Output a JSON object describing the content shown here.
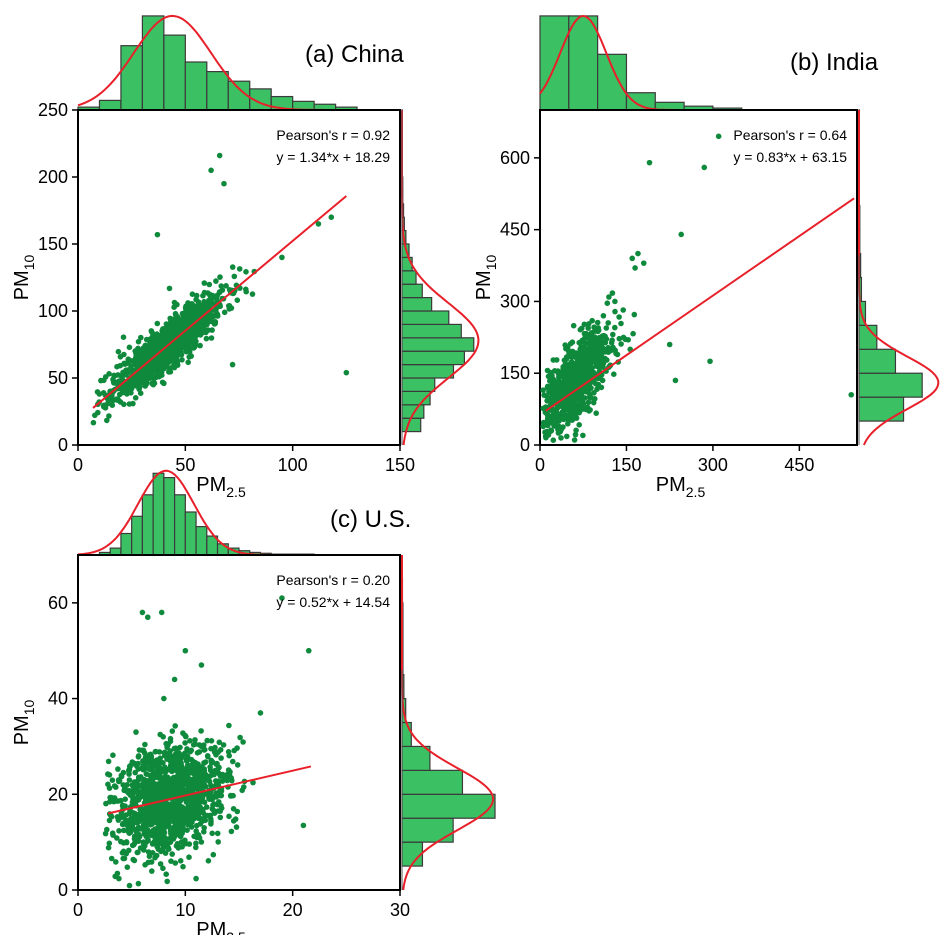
{
  "chart_data": [
    {
      "type": "scatter",
      "title": "(a) China",
      "xlabel": "PM",
      "xlabel_sub": "2.5",
      "ylabel": "PM",
      "ylabel_sub": "10",
      "xlim": [
        0,
        150
      ],
      "ylim": [
        0,
        250
      ],
      "xticks": [
        0,
        50,
        100,
        150
      ],
      "yticks": [
        0,
        50,
        100,
        150,
        200,
        250
      ],
      "grid": false,
      "annotation": [
        "Pearson's r = 0.92",
        "y = 1.34*x + 18.29"
      ],
      "fit": {
        "slope": 1.34,
        "intercept": 18.29,
        "x_range": [
          7,
          125
        ]
      },
      "cloud": {
        "x_center": 42,
        "x_sd": 13,
        "x_min": 7,
        "x_max": 118,
        "slope": 1.34,
        "intercept": 18.29,
        "y_sd": 9,
        "count": 1100
      },
      "outliers": [
        [
          66,
          216
        ],
        [
          62,
          205
        ],
        [
          68,
          195
        ],
        [
          37,
          157
        ],
        [
          125,
          54
        ],
        [
          40,
          46
        ],
        [
          72,
          60
        ],
        [
          95,
          140
        ],
        [
          112,
          165
        ],
        [
          118,
          170
        ]
      ],
      "histogram_x": {
        "bins": [
          [
            0,
            10,
            0.03
          ],
          [
            10,
            20,
            0.1
          ],
          [
            20,
            30,
            0.67
          ],
          [
            30,
            40,
            0.98
          ],
          [
            40,
            50,
            0.78
          ],
          [
            50,
            60,
            0.5
          ],
          [
            60,
            70,
            0.4
          ],
          [
            70,
            80,
            0.3
          ],
          [
            80,
            90,
            0.22
          ],
          [
            90,
            100,
            0.14
          ],
          [
            100,
            110,
            0.09
          ],
          [
            110,
            120,
            0.06
          ],
          [
            120,
            130,
            0.03
          ]
        ],
        "curve": {
          "mu": 44,
          "sigma": 18
        }
      },
      "histogram_y": {
        "bins": [
          [
            10,
            20,
            0.24
          ],
          [
            20,
            30,
            0.28
          ],
          [
            30,
            40,
            0.36
          ],
          [
            40,
            50,
            0.42
          ],
          [
            50,
            60,
            0.66
          ],
          [
            60,
            70,
            0.8
          ],
          [
            70,
            80,
            0.92
          ],
          [
            80,
            90,
            0.76
          ],
          [
            90,
            100,
            0.6
          ],
          [
            100,
            110,
            0.38
          ],
          [
            110,
            120,
            0.26
          ],
          [
            120,
            130,
            0.18
          ],
          [
            130,
            140,
            0.13
          ],
          [
            140,
            150,
            0.09
          ],
          [
            150,
            160,
            0.05
          ],
          [
            160,
            170,
            0.03
          ],
          [
            170,
            180,
            0.02
          ],
          [
            180,
            190,
            0.01
          ],
          [
            190,
            200,
            0.01
          ],
          [
            200,
            210,
            0.005
          ],
          [
            210,
            220,
            0.005
          ],
          [
            220,
            230,
            0.005
          ],
          [
            230,
            240,
            0.005
          ],
          [
            240,
            250,
            0.005
          ]
        ],
        "curve": {
          "mu": 78,
          "sigma": 28
        }
      },
      "colors": {
        "points": "#0f8a3c",
        "fit": "#e8202a",
        "bars": "#3cc064",
        "bar_edge": "#3a3a3a"
      }
    },
    {
      "type": "scatter",
      "title": "(b) India",
      "xlabel": "PM",
      "xlabel_sub": "2.5",
      "ylabel": "PM",
      "ylabel_sub": "10",
      "xlim": [
        0,
        550
      ],
      "ylim": [
        0,
        700
      ],
      "xticks": [
        0,
        150,
        300,
        450
      ],
      "yticks": [
        0,
        150,
        300,
        450,
        600
      ],
      "grid": false,
      "annotation": [
        "Pearson's r = 0.64",
        "y = 0.83*x + 63.15"
      ],
      "fit": {
        "slope": 0.83,
        "intercept": 63.15,
        "x_range": [
          10,
          545
        ]
      },
      "cloud": {
        "x_center": 60,
        "x_sd": 32,
        "x_min": 5,
        "x_max": 190,
        "slope": 1.3,
        "intercept": 50,
        "y_sd": 40,
        "count": 900
      },
      "outliers": [
        [
          310,
          645
        ],
        [
          190,
          590
        ],
        [
          285,
          580
        ],
        [
          245,
          440
        ],
        [
          170,
          400
        ],
        [
          160,
          390
        ],
        [
          180,
          380
        ],
        [
          165,
          370
        ],
        [
          540,
          105
        ],
        [
          295,
          175
        ],
        [
          225,
          210
        ],
        [
          235,
          135
        ],
        [
          130,
          300
        ],
        [
          110,
          270
        ]
      ],
      "histogram_x": {
        "bins": [
          [
            0,
            50,
            0.98
          ],
          [
            50,
            100,
            0.98
          ],
          [
            100,
            150,
            0.58
          ],
          [
            150,
            200,
            0.18
          ],
          [
            200,
            250,
            0.08
          ],
          [
            250,
            300,
            0.04
          ],
          [
            300,
            350,
            0.02
          ]
        ],
        "curve": {
          "mu": 75,
          "sigma": 40
        }
      },
      "histogram_y": {
        "bins": [
          [
            50,
            100,
            0.55
          ],
          [
            100,
            150,
            0.78
          ],
          [
            150,
            200,
            0.45
          ],
          [
            200,
            250,
            0.22
          ],
          [
            250,
            300,
            0.08
          ],
          [
            300,
            350,
            0.03
          ],
          [
            350,
            400,
            0.02
          ],
          [
            400,
            450,
            0.01
          ],
          [
            450,
            500,
            0.01
          ],
          [
            500,
            550,
            0.005
          ],
          [
            550,
            600,
            0.005
          ],
          [
            600,
            650,
            0.005
          ],
          [
            650,
            700,
            0.005
          ]
        ],
        "curve": {
          "mu": 130,
          "sigma": 55
        }
      },
      "colors": {
        "points": "#0f8a3c",
        "fit": "#e8202a",
        "bars": "#3cc064",
        "bar_edge": "#3a3a3a"
      }
    },
    {
      "type": "scatter",
      "title": "(c) U.S.",
      "xlabel": "PM",
      "xlabel_sub": "2.5",
      "ylabel": "PM",
      "ylabel_sub": "10",
      "xlim": [
        0,
        30
      ],
      "ylim": [
        0,
        70
      ],
      "xticks": [
        0,
        10,
        20,
        30
      ],
      "yticks": [
        0,
        20,
        40,
        60
      ],
      "grid": false,
      "annotation": [
        "Pearson's r = 0.20",
        "y = 0.52*x + 14.54"
      ],
      "fit": {
        "slope": 0.52,
        "intercept": 14.54,
        "x_range": [
          2.8,
          21.7
        ]
      },
      "cloud": {
        "x_center": 8.5,
        "x_sd": 2.6,
        "x_min": 2.5,
        "x_max": 17,
        "slope": 0.52,
        "intercept": 14.54,
        "y_sd": 5.5,
        "count": 1300
      },
      "outliers": [
        [
          6,
          58
        ],
        [
          6.5,
          57
        ],
        [
          7.8,
          58
        ],
        [
          19,
          61
        ],
        [
          21.5,
          50
        ],
        [
          10,
          50
        ],
        [
          11.5,
          47
        ],
        [
          21,
          13.5
        ],
        [
          17,
          37
        ],
        [
          9,
          44
        ],
        [
          8,
          40
        ]
      ],
      "histogram_x": {
        "bins": [
          [
            2,
            3,
            0.03
          ],
          [
            3,
            4,
            0.08
          ],
          [
            4,
            5,
            0.25
          ],
          [
            5,
            6,
            0.45
          ],
          [
            6,
            7,
            0.7
          ],
          [
            7,
            8,
            0.95
          ],
          [
            8,
            9,
            0.9
          ],
          [
            9,
            10,
            0.7
          ],
          [
            10,
            11,
            0.5
          ],
          [
            11,
            12,
            0.33
          ],
          [
            12,
            13,
            0.22
          ],
          [
            13,
            14,
            0.13
          ],
          [
            14,
            15,
            0.08
          ],
          [
            15,
            16,
            0.05
          ],
          [
            16,
            17,
            0.03
          ],
          [
            17,
            18,
            0.02
          ],
          [
            18,
            19,
            0.01
          ],
          [
            19,
            20,
            0.01
          ],
          [
            20,
            21,
            0.01
          ],
          [
            21,
            22,
            0.01
          ]
        ],
        "curve": {
          "mu": 8.2,
          "sigma": 2.6
        }
      },
      "histogram_y": {
        "bins": [
          [
            5,
            10,
            0.22
          ],
          [
            10,
            15,
            0.55
          ],
          [
            15,
            20,
            1.0
          ],
          [
            20,
            25,
            0.65
          ],
          [
            25,
            30,
            0.3
          ],
          [
            30,
            35,
            0.1
          ],
          [
            35,
            40,
            0.04
          ],
          [
            40,
            45,
            0.02
          ],
          [
            45,
            50,
            0.01
          ],
          [
            50,
            55,
            0.01
          ],
          [
            55,
            60,
            0.01
          ],
          [
            60,
            65,
            0.005
          ]
        ],
        "curve": {
          "mu": 19,
          "sigma": 6.5
        }
      },
      "colors": {
        "points": "#0f8a3c",
        "fit": "#e8202a",
        "bars": "#3cc064",
        "bar_edge": "#3a3a3a"
      }
    }
  ]
}
